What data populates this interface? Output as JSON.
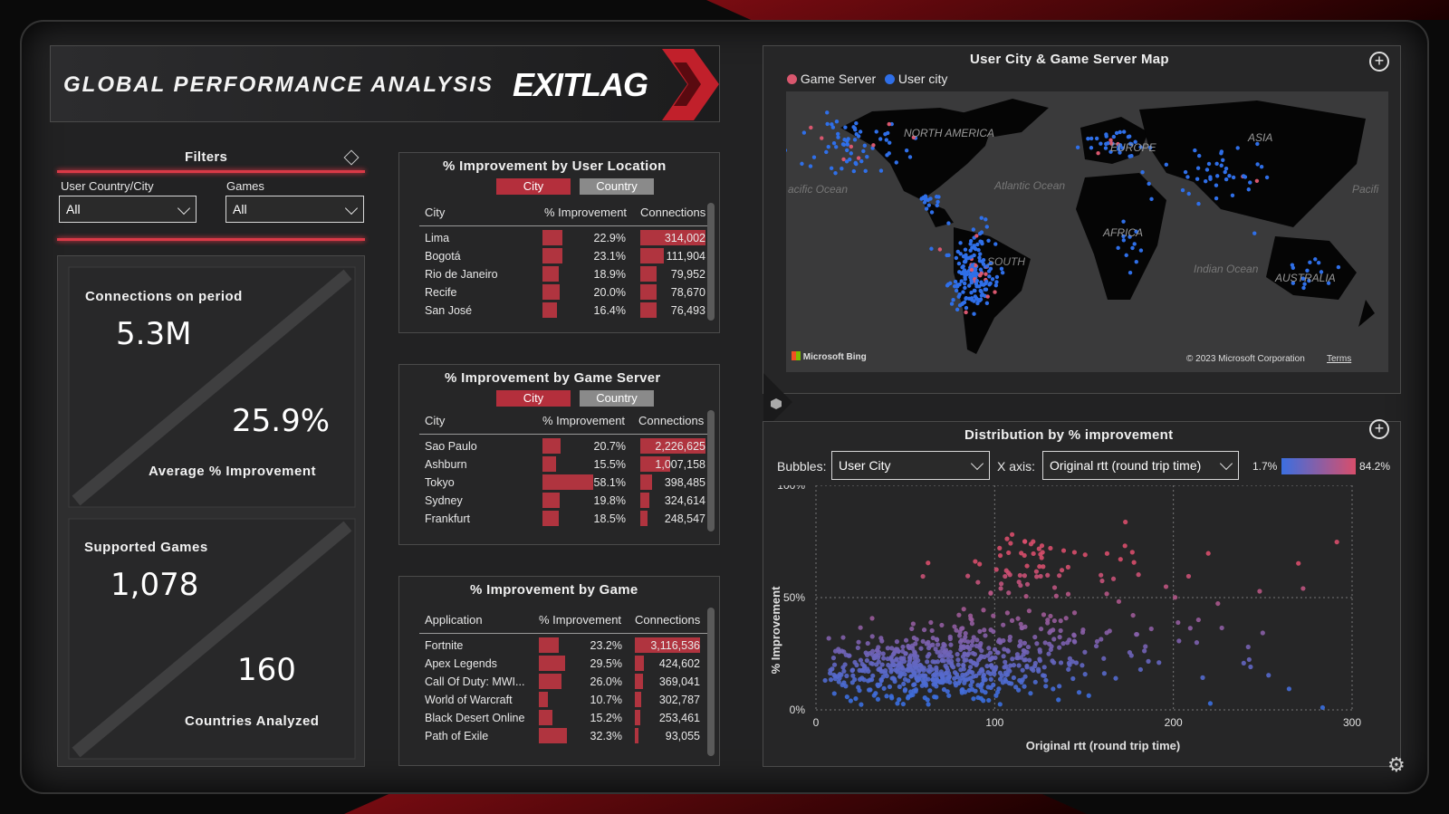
{
  "header": {
    "title": "GLOBAL PERFORMANCE ANALYSIS",
    "logo_text": "EXITLAG"
  },
  "filters": {
    "title": "Filters",
    "country_label": "User Country/City",
    "country_value": "All",
    "games_label": "Games",
    "games_value": "All"
  },
  "kpi": {
    "connections_label": "Connections on period",
    "connections_value": "5.3M",
    "avg_value": "25.9%",
    "avg_label": "Average % Improvement",
    "games_label": "Supported Games",
    "games_value": "1,078",
    "countries_value": "160",
    "countries_label": "Countries Analyzed"
  },
  "location_table": {
    "title": "% Improvement by User Location",
    "btn_city": "City",
    "btn_country": "Country",
    "col_name": "City",
    "col_pct": "% Improvement",
    "col_conn": "Connections",
    "rows": [
      {
        "name": "Lima",
        "pct": "22.9%",
        "conn": "314,002",
        "p": 22.9,
        "c": 314002
      },
      {
        "name": "Bogotá",
        "pct": "23.1%",
        "conn": "111,904",
        "p": 23.1,
        "c": 111904
      },
      {
        "name": "Rio de Janeiro",
        "pct": "18.9%",
        "conn": "79,952",
        "p": 18.9,
        "c": 79952
      },
      {
        "name": "Recife",
        "pct": "20.0%",
        "conn": "78,670",
        "p": 20.0,
        "c": 78670
      },
      {
        "name": "San José",
        "pct": "16.4%",
        "conn": "76,493",
        "p": 16.4,
        "c": 76493
      }
    ]
  },
  "server_table": {
    "title": "% Improvement by Game Server",
    "btn_city": "City",
    "btn_country": "Country",
    "col_name": "City",
    "col_pct": "% Improvement",
    "col_conn": "Connections",
    "rows": [
      {
        "name": "Sao Paulo",
        "pct": "20.7%",
        "conn": "2,226,625",
        "p": 20.7,
        "c": 2226625
      },
      {
        "name": "Ashburn",
        "pct": "15.5%",
        "conn": "1,007,158",
        "p": 15.5,
        "c": 1007158
      },
      {
        "name": "Tokyo",
        "pct": "58.1%",
        "conn": "398,485",
        "p": 58.1,
        "c": 398485
      },
      {
        "name": "Sydney",
        "pct": "19.8%",
        "conn": "324,614",
        "p": 19.8,
        "c": 324614
      },
      {
        "name": "Frankfurt",
        "pct": "18.5%",
        "conn": "248,547",
        "p": 18.5,
        "c": 248547
      }
    ]
  },
  "game_table": {
    "title": "% Improvement by Game",
    "col_name": "Application",
    "col_pct": "% Improvement",
    "col_conn": "Connections",
    "rows": [
      {
        "name": "Fortnite",
        "pct": "23.2%",
        "conn": "3,116,536",
        "p": 23.2,
        "c": 3116536
      },
      {
        "name": "Apex Legends",
        "pct": "29.5%",
        "conn": "424,602",
        "p": 29.5,
        "c": 424602
      },
      {
        "name": "Call Of Duty: MWI...",
        "pct": "26.0%",
        "conn": "369,041",
        "p": 26.0,
        "c": 369041
      },
      {
        "name": "World of Warcraft",
        "pct": "10.7%",
        "conn": "302,787",
        "p": 10.7,
        "c": 302787
      },
      {
        "name": "Black Desert Online",
        "pct": "15.2%",
        "conn": "253,461",
        "p": 15.2,
        "c": 253461
      },
      {
        "name": "Path of Exile",
        "pct": "32.3%",
        "conn": "93,055",
        "p": 32.3,
        "c": 93055
      }
    ]
  },
  "map": {
    "title": "User City & Game Server Map",
    "legend_server": "Game Server",
    "legend_user": "User city",
    "server_color": "#d9576e",
    "user_color": "#2f6fe8",
    "labels": {
      "na": "NORTH\nAMERICA",
      "europe": "EUROPE",
      "asia": "ASIA",
      "africa": "AFRICA",
      "australia": "AUSTRALIA",
      "atlantic": "Atlantic\nOcean",
      "pacific_l": "acific Ocean",
      "pacific_r": "Pacifi",
      "indian": "Indian\nOcean",
      "sa": "SOUTH"
    },
    "bing": "Microsoft Bing",
    "copyright": "© 2023 Microsoft Corporation",
    "terms": "Terms"
  },
  "scatter": {
    "title": "Distribution by % improvement",
    "bubbles_label": "Bubbles:",
    "bubbles_value": "User City",
    "xaxis_label": "X axis:",
    "xaxis_value": "Original rtt (round trip time)",
    "grad_min": "1.7%",
    "grad_max": "84.2%"
  },
  "chart_data": {
    "type": "scatter",
    "xlabel": "Original rtt (round trip time)",
    "ylabel": "% Improvement",
    "xlim": [
      0,
      300
    ],
    "ylim": [
      0,
      100
    ],
    "xticks": [
      "0",
      "100",
      "200",
      "300"
    ],
    "yticks": [
      "0%",
      "50%",
      "100%"
    ],
    "grid": true,
    "seed": 7,
    "clusters": [
      {
        "cx": 60,
        "cy": 18,
        "sx": 30,
        "sy": 7,
        "n": 520
      },
      {
        "cx": 110,
        "cy": 28,
        "sx": 30,
        "sy": 10,
        "n": 160
      },
      {
        "cx": 115,
        "cy": 62,
        "sx": 12,
        "sy": 7,
        "n": 45
      },
      {
        "cx": 200,
        "cy": 25,
        "sx": 35,
        "sy": 15,
        "n": 35
      },
      {
        "cx": 160,
        "cy": 65,
        "sx": 70,
        "sy": 10,
        "n": 30
      }
    ]
  },
  "colors": {
    "accent": "#b42f3c",
    "panel": "#262627"
  }
}
